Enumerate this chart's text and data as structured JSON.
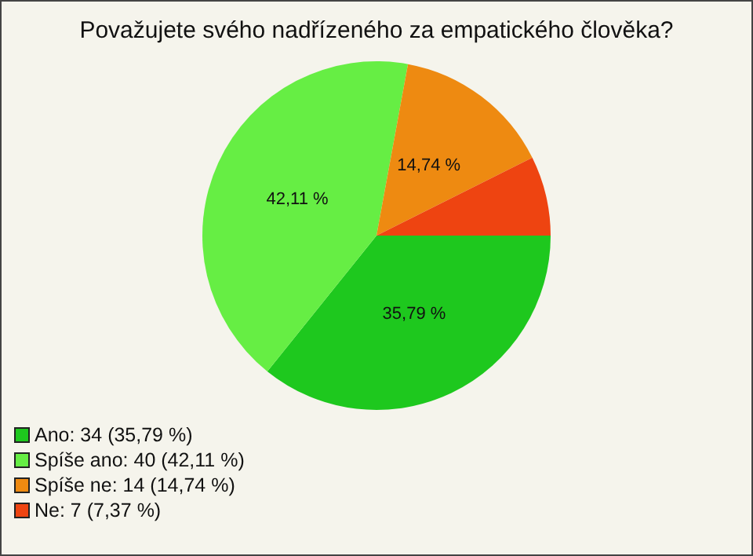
{
  "chart_data": {
    "type": "pie",
    "title": "Považujete svého nadřízeného za empatického člověka?",
    "categories": [
      "Ano: 34 (35,79 %)",
      "Spíše ano: 40 (42,11 %)",
      "Spíše ne: 14 (14,74 %)",
      "Ne: 7 (7,37 %)"
    ],
    "values": [
      35.79,
      42.11,
      14.74,
      7.37
    ],
    "value_labels": [
      "35,79 %",
      "42,11 %",
      "14,74 %",
      null
    ],
    "colors": [
      "#1ec81e",
      "#66ee44",
      "#ee8a11",
      "#ee4411"
    ],
    "legend": "bottom left"
  }
}
